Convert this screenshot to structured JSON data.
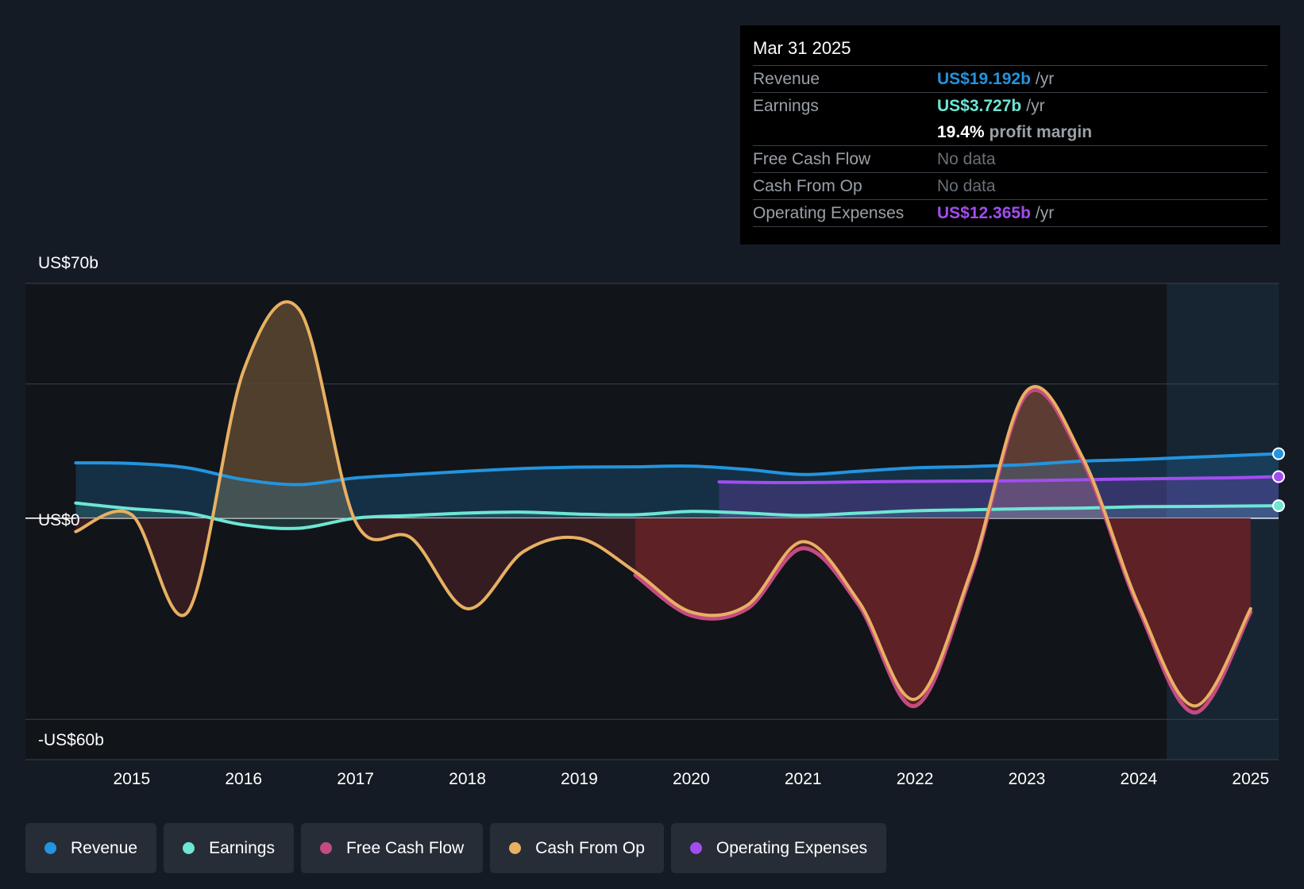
{
  "tooltip": {
    "date": "Mar 31 2025",
    "rows": [
      {
        "label": "Revenue",
        "value": "US$19.192b",
        "unit": "/yr",
        "color": "#2394df"
      },
      {
        "label": "Earnings",
        "value": "US$3.727b",
        "unit": "/yr",
        "color": "#6ee6d4"
      },
      {
        "label": "",
        "value": "19.4%",
        "unit": "profit margin",
        "color": "#ffffff"
      },
      {
        "label": "Free Cash Flow",
        "value": "No data"
      },
      {
        "label": "Cash From Op",
        "value": "No data"
      },
      {
        "label": "Operating Expenses",
        "value": "US$12.365b",
        "unit": "/yr",
        "color": "#a24df0"
      }
    ]
  },
  "legend": [
    {
      "label": "Revenue",
      "color": "#2394df"
    },
    {
      "label": "Earnings",
      "color": "#6ee6d4"
    },
    {
      "label": "Free Cash Flow",
      "color": "#c34b82"
    },
    {
      "label": "Cash From Op",
      "color": "#e8b062"
    },
    {
      "label": "Operating Expenses",
      "color": "#a24df0"
    }
  ],
  "chart_data": {
    "type": "area",
    "title": "",
    "xlabel": "",
    "ylabel": "",
    "y_axis_labels": {
      "top": "US$70b",
      "zero": "US$0",
      "bottom": "-US$60b"
    },
    "ylim": [
      -72,
      70
    ],
    "xlim": [
      2014.05,
      2025.25
    ],
    "x_ticks": [
      2015,
      2016,
      2017,
      2018,
      2019,
      2020,
      2021,
      2022,
      2023,
      2024,
      2025
    ],
    "x_tick_labels": [
      "2015",
      "2016",
      "2017",
      "2018",
      "2019",
      "2020",
      "2021",
      "2022",
      "2023",
      "2024",
      "2025"
    ],
    "forecast_start": 2024.25,
    "series": [
      {
        "name": "Revenue",
        "color": "#2394df",
        "x": [
          2014.5,
          2015,
          2015.5,
          2016,
          2016.5,
          2017,
          2017.5,
          2018,
          2018.5,
          2019,
          2019.5,
          2020,
          2020.5,
          2021,
          2021.5,
          2022,
          2022.5,
          2023,
          2023.5,
          2024,
          2024.5,
          2025.25
        ],
        "y": [
          16.5,
          16.3,
          15.0,
          11.5,
          10.0,
          12.0,
          13.0,
          14.0,
          14.8,
          15.2,
          15.3,
          15.5,
          14.5,
          13.0,
          14.0,
          15.0,
          15.4,
          16.0,
          17.0,
          17.5,
          18.2,
          19.2
        ]
      },
      {
        "name": "Earnings",
        "color": "#6ee6d4",
        "x": [
          2014.5,
          2015,
          2015.5,
          2016,
          2016.5,
          2017,
          2017.5,
          2018,
          2018.5,
          2019,
          2019.5,
          2020,
          2020.5,
          2021,
          2021.5,
          2022,
          2022.5,
          2023,
          2023.5,
          2024,
          2024.5,
          2025.25
        ],
        "y": [
          4.5,
          2.8,
          1.5,
          -2.0,
          -3.0,
          0.0,
          0.8,
          1.5,
          1.8,
          1.2,
          1.0,
          2.0,
          1.5,
          0.8,
          1.5,
          2.2,
          2.5,
          2.8,
          3.0,
          3.4,
          3.5,
          3.7
        ]
      },
      {
        "name": "Free Cash Flow",
        "color": "#c34b82",
        "x": [
          2019.5,
          2020,
          2020.5,
          2021,
          2021.5,
          2022,
          2022.5,
          2023,
          2023.5,
          2024,
          2024.5,
          2025
        ],
        "y": [
          -17,
          -29,
          -27,
          -9,
          -26,
          -56,
          -17,
          37,
          17,
          -27,
          -58,
          -28
        ]
      },
      {
        "name": "Cash From Op",
        "color": "#e8b062",
        "x": [
          2014.5,
          2015,
          2015.5,
          2016,
          2016.5,
          2017,
          2017.5,
          2018,
          2018.5,
          2019,
          2019.5,
          2020,
          2020.5,
          2021,
          2021.5,
          2022,
          2022.5,
          2023,
          2023.5,
          2024,
          2024.5,
          2025
        ],
        "y": [
          -4,
          1,
          -28,
          44,
          62,
          -1,
          -6,
          -27,
          -10,
          -6,
          -16,
          -28,
          -26,
          -7,
          -25,
          -54,
          -16,
          38,
          18,
          -26,
          -56,
          -27
        ]
      },
      {
        "name": "Operating Expenses",
        "color": "#a24df0",
        "x": [
          2020.25,
          2020.75,
          2021.25,
          2021.75,
          2022.25,
          2022.75,
          2023.25,
          2023.75,
          2024.25,
          2024.75,
          2025.25
        ],
        "y": [
          10.8,
          10.6,
          10.7,
          10.9,
          11.0,
          11.1,
          11.3,
          11.6,
          11.8,
          12.0,
          12.365
        ]
      }
    ]
  }
}
